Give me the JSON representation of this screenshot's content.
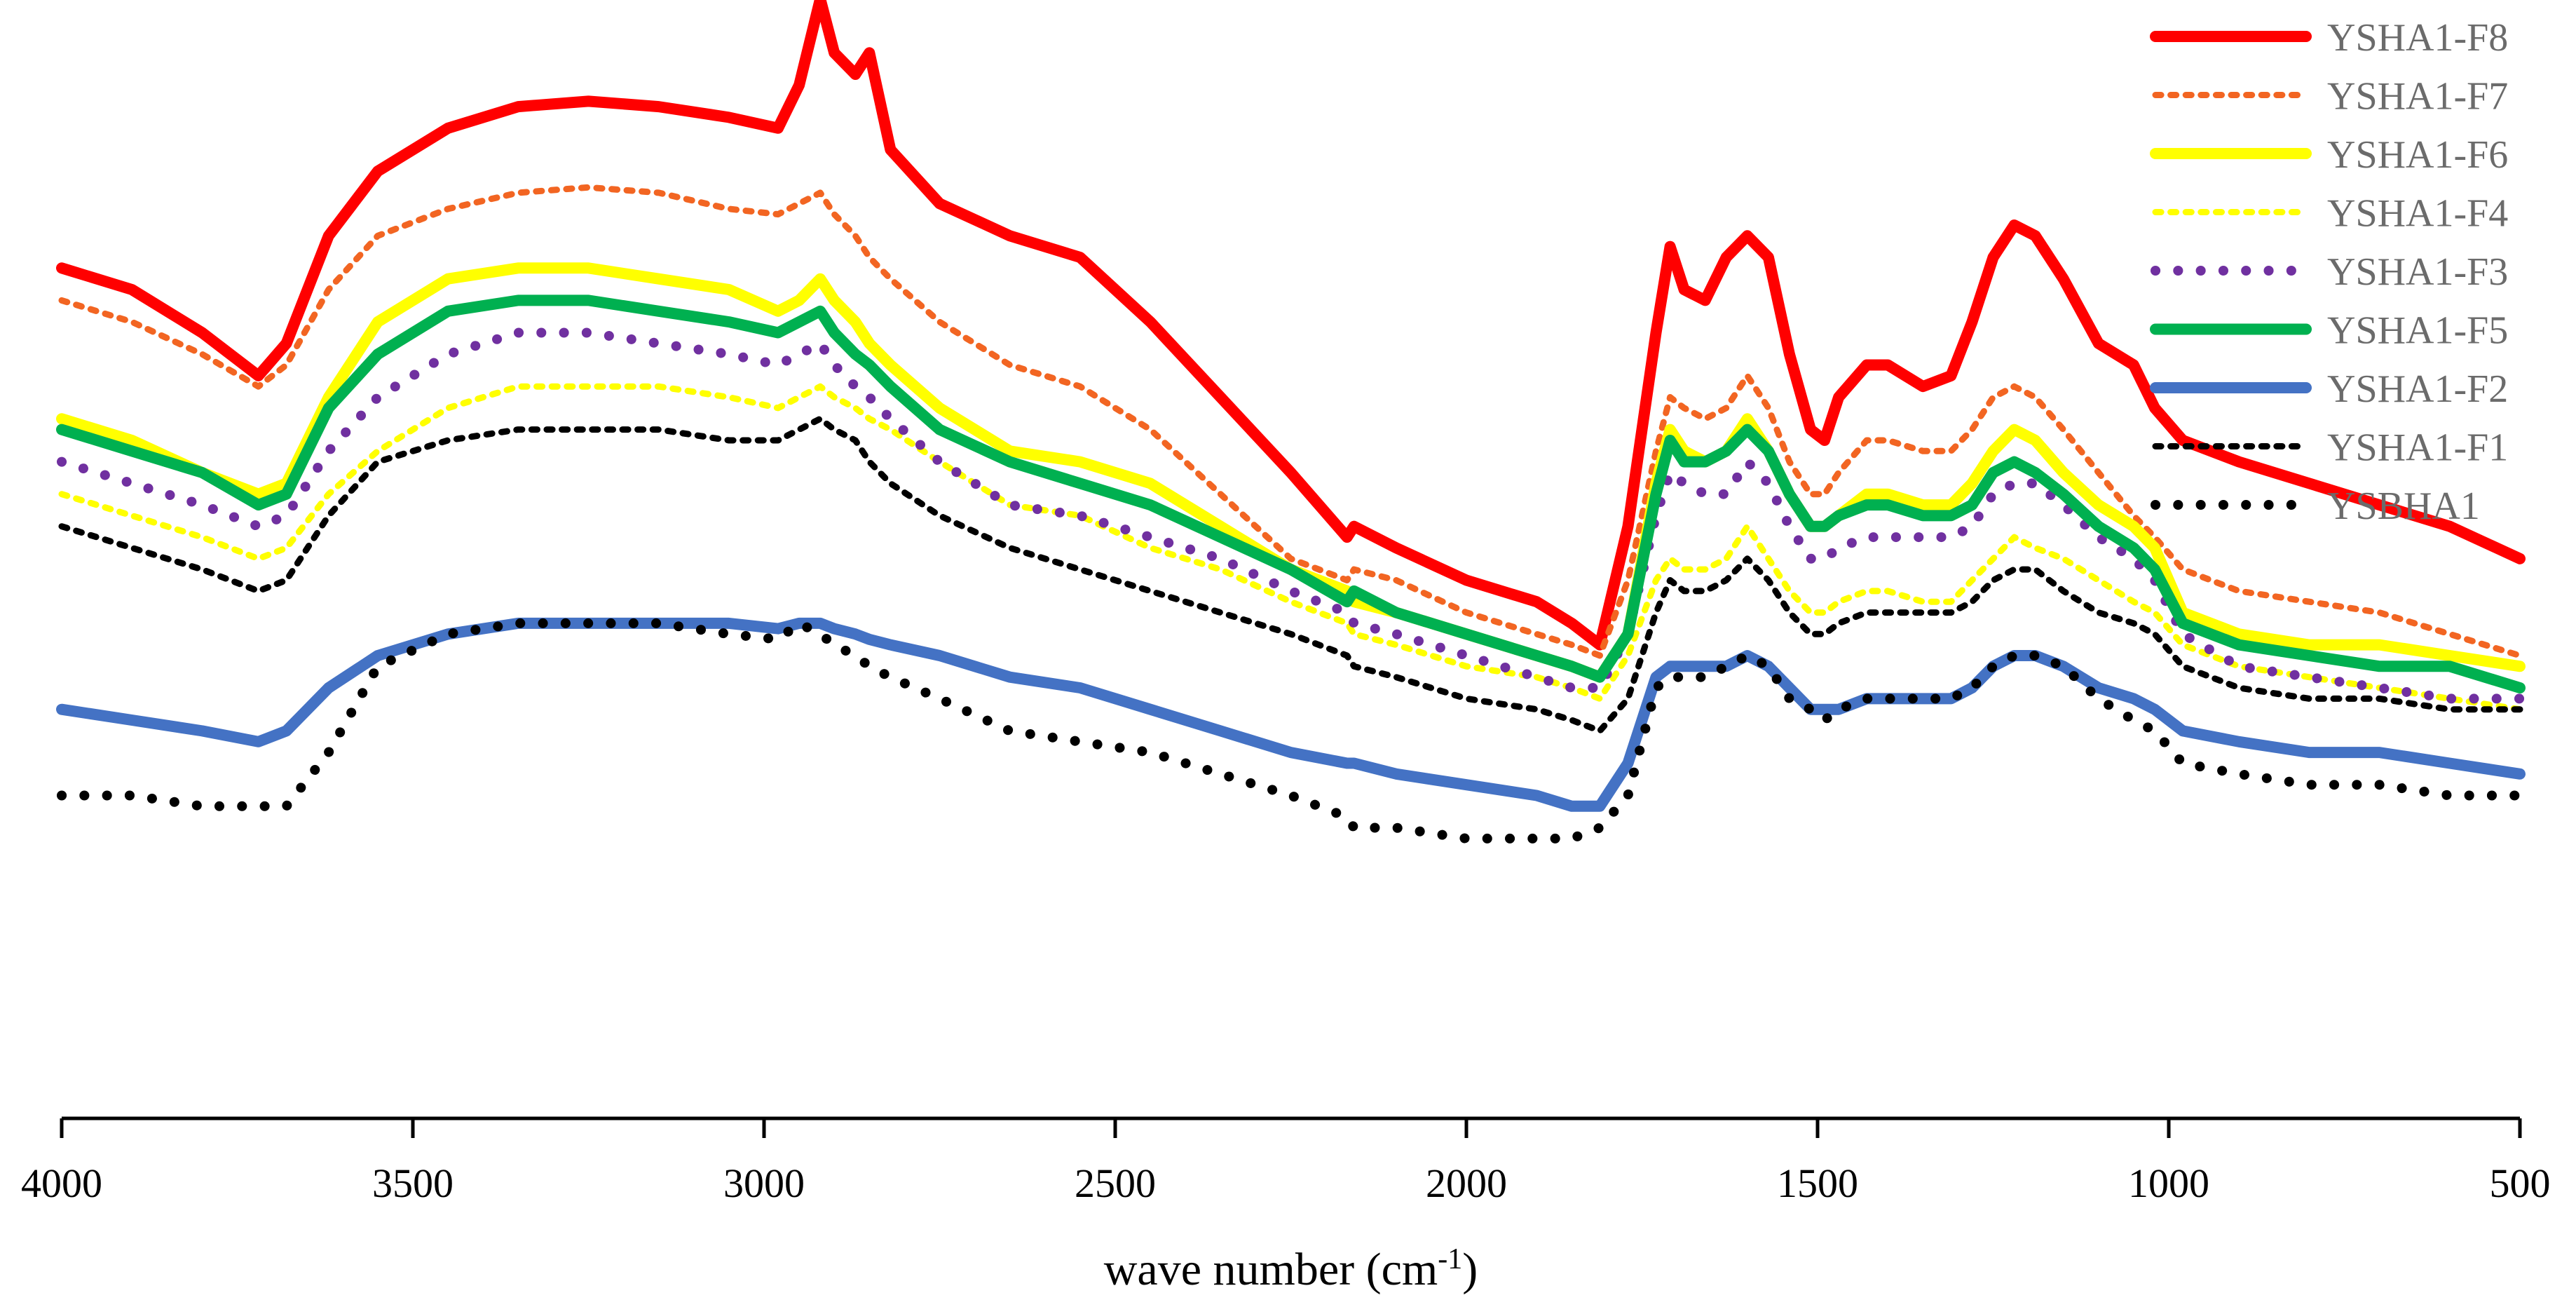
{
  "chart_data": {
    "type": "line",
    "title": "",
    "xlabel": "wave number (cm",
    "xlabel_sup": "-1",
    "xlabel_suffix": ")",
    "ylabel": "",
    "xlim": [
      4000,
      500
    ],
    "ylim": [
      0,
      100
    ],
    "x_ticks": [
      4000,
      3500,
      3000,
      2500,
      2000,
      1500,
      1000,
      500
    ],
    "x_tick_labels": [
      "4000",
      "3500",
      "3000",
      "2500",
      "2000",
      "1500",
      "1000",
      "500"
    ],
    "grid": false,
    "legend_position": "top-right",
    "x": [
      4000,
      3900,
      3800,
      3720,
      3680,
      3620,
      3550,
      3450,
      3350,
      3250,
      3150,
      3050,
      2980,
      2950,
      2920,
      2900,
      2870,
      2850,
      2820,
      2750,
      2650,
      2550,
      2450,
      2350,
      2250,
      2170,
      2160,
      2100,
      2000,
      1900,
      1850,
      1810,
      1770,
      1730,
      1710,
      1690,
      1660,
      1630,
      1600,
      1570,
      1540,
      1510,
      1490,
      1470,
      1430,
      1400,
      1350,
      1310,
      1280,
      1250,
      1220,
      1190,
      1150,
      1100,
      1050,
      1020,
      980,
      900,
      800,
      700,
      600,
      500
    ],
    "series": [
      {
        "name": "YSHA1-F8",
        "color": "#ff0000",
        "style": "solid",
        "width": 16,
        "values": [
          79,
          77,
          73,
          69,
          72,
          82,
          88,
          92,
          94,
          94.5,
          94,
          93,
          92,
          96,
          104,
          99,
          97,
          99,
          90,
          85,
          82,
          80,
          74,
          67,
          60,
          54,
          55,
          53,
          50,
          48,
          46,
          44,
          55,
          73,
          81,
          77,
          76,
          80,
          82,
          80,
          71,
          64,
          63,
          67,
          70,
          70,
          68,
          69,
          74,
          80,
          83,
          82,
          78,
          72,
          70,
          66,
          63,
          61,
          59,
          57,
          55,
          52
        ]
      },
      {
        "name": "YSHA1-F7",
        "color": "#f26522",
        "style": "dotted",
        "width": 9,
        "values": [
          76,
          74,
          71,
          68,
          70,
          77,
          82,
          84.5,
          86,
          86.5,
          86,
          84.5,
          84,
          85,
          86,
          84,
          82,
          80,
          78,
          74,
          70,
          68,
          64,
          58,
          52,
          50,
          51,
          50,
          47,
          45,
          44,
          43,
          50,
          62,
          67,
          66,
          65,
          66,
          69,
          66,
          61,
          58,
          58,
          60,
          63,
          63,
          62,
          62,
          64,
          67,
          68,
          67,
          64,
          60,
          56,
          54,
          51,
          49,
          48,
          47,
          45,
          43
        ]
      },
      {
        "name": "YSHA1-F6",
        "color": "#ffff00",
        "style": "solid",
        "width": 16,
        "values": [
          65,
          63,
          60,
          58,
          59,
          67,
          74,
          78,
          79,
          79,
          78,
          77,
          75,
          76,
          78,
          76,
          74,
          72,
          70,
          66,
          62,
          61,
          59,
          55,
          51,
          49,
          48,
          47,
          45,
          43,
          42,
          41,
          45,
          59,
          64,
          62,
          61,
          62,
          65,
          62,
          58,
          55,
          55,
          56,
          58,
          58,
          57,
          57,
          59,
          62,
          64,
          63,
          60,
          57,
          55,
          53,
          47,
          45,
          44,
          44,
          43,
          42
        ]
      },
      {
        "name": "YSHA1-F4",
        "color": "#ffff00",
        "style": "dotted",
        "width": 9,
        "values": [
          58,
          56,
          54,
          52,
          53,
          58,
          62,
          66,
          68,
          68,
          68,
          67,
          66,
          67,
          68,
          67,
          66,
          65,
          64,
          61,
          57,
          56,
          53,
          51,
          48,
          46,
          45,
          44,
          42,
          41,
          40,
          39,
          43,
          50,
          52,
          51,
          51,
          52,
          55,
          52,
          49,
          47,
          47,
          48,
          49,
          49,
          48,
          48,
          50,
          52,
          54,
          53,
          52,
          50,
          48,
          47,
          44,
          42,
          41,
          40,
          39,
          38
        ]
      },
      {
        "name": "YSHA1-F3",
        "color": "#7030a0",
        "style": "dots",
        "width": 14,
        "values": [
          61,
          59,
          57,
          55,
          56,
          62,
          67,
          71,
          73,
          73,
          72,
          71,
          70,
          71,
          72,
          70,
          68,
          67,
          65,
          61,
          57,
          56,
          54,
          52,
          49,
          47,
          46,
          45,
          43,
          41,
          40,
          40,
          45,
          56,
          60,
          59,
          58,
          58,
          61,
          59,
          55,
          52,
          52,
          53,
          54,
          54,
          54,
          54,
          55,
          58,
          59,
          59,
          57,
          54,
          52,
          50,
          45,
          42,
          41,
          40,
          39,
          39
        ]
      },
      {
        "name": "YSHA1-F5",
        "color": "#00b050",
        "style": "solid",
        "width": 16,
        "values": [
          64,
          62,
          60,
          57,
          58,
          66,
          71,
          75,
          76,
          76,
          75,
          74,
          73,
          74,
          75,
          73,
          71,
          70,
          68,
          64,
          61,
          59,
          57,
          54,
          51,
          48,
          49,
          47,
          45,
          43,
          42,
          41,
          45,
          58,
          63,
          61,
          61,
          62,
          64,
          62,
          58,
          55,
          55,
          56,
          57,
          57,
          56,
          56,
          57,
          60,
          61,
          60,
          58,
          55,
          53,
          51,
          46,
          44,
          43,
          42,
          42,
          40
        ]
      },
      {
        "name": "YSHA1-F2",
        "color": "#4472c4",
        "style": "solid",
        "width": 16,
        "values": [
          38,
          37,
          36,
          35,
          36,
          40,
          43,
          45,
          46,
          46,
          46,
          46,
          45.5,
          46,
          46,
          45.5,
          45,
          44.5,
          44,
          43,
          41,
          40,
          38,
          36,
          34,
          33,
          33,
          32,
          31,
          30,
          29,
          29,
          33,
          41,
          42,
          42,
          42,
          42,
          43,
          42,
          40,
          38,
          38,
          38,
          39,
          39,
          39,
          39,
          40,
          42,
          43,
          43,
          42,
          40,
          39,
          38,
          36,
          35,
          34,
          34,
          33,
          32
        ]
      },
      {
        "name": "YSHA1-F1",
        "color": "#000000",
        "style": "dotted",
        "width": 9,
        "values": [
          55,
          53,
          51,
          49,
          50,
          56,
          61,
          63,
          64,
          64,
          64,
          63,
          63,
          64,
          65,
          64,
          63,
          61,
          59,
          56,
          53,
          51,
          49,
          47,
          45,
          43,
          42,
          41,
          39,
          38,
          37,
          36,
          39,
          47,
          50,
          49,
          49,
          50,
          52,
          50,
          47,
          45,
          45,
          46,
          47,
          47,
          47,
          47,
          48,
          50,
          51,
          51,
          49,
          47,
          46,
          45,
          42,
          40,
          39,
          39,
          38,
          38
        ]
      },
      {
        "name": "YSBHA1",
        "color": "#000000",
        "style": "dots",
        "width": 14,
        "values": [
          30,
          30,
          29,
          29,
          29,
          34,
          42,
          45,
          46,
          46,
          46,
          45,
          44.5,
          46,
          45,
          44,
          43,
          42,
          41,
          39,
          36,
          35,
          34,
          32,
          30,
          28,
          27,
          27,
          26,
          26,
          26,
          27,
          30,
          40,
          41,
          41,
          41,
          42,
          43,
          42,
          39,
          38,
          37,
          38,
          39,
          39,
          39,
          39,
          40,
          42,
          43,
          43,
          42,
          39,
          37,
          36,
          33,
          32,
          31,
          31,
          30,
          30
        ]
      }
    ]
  }
}
